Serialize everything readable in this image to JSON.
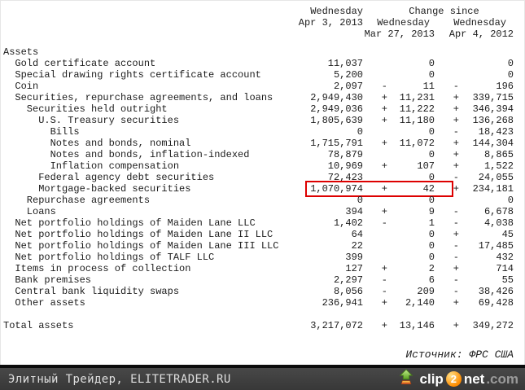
{
  "header": {
    "col1_line1": "Wednesday",
    "change_since": "Change since",
    "col1_line2": "Apr 3, 2013",
    "col2_line2": "Wednesday",
    "col3_line2": "Wednesday",
    "col2_line3": "Mar 27, 2013",
    "col3_line3": "Apr 4, 2012"
  },
  "table": {
    "rows": [
      {
        "label": "Assets",
        "indent": 0,
        "v1": "",
        "s2": "",
        "v2": "",
        "s3": "",
        "v3": ""
      },
      {
        "label": "Gold certificate account",
        "indent": 2,
        "v1": "11,037",
        "s2": "",
        "v2": "0",
        "s3": "",
        "v3": "0"
      },
      {
        "label": "Special drawing rights certificate account",
        "indent": 2,
        "v1": "5,200",
        "s2": "",
        "v2": "0",
        "s3": "",
        "v3": "0"
      },
      {
        "label": "Coin",
        "indent": 2,
        "v1": "2,097",
        "s2": "-",
        "v2": "11",
        "s3": "-",
        "v3": "196"
      },
      {
        "label": "Securities, repurchase agreements, and loans",
        "indent": 2,
        "v1": "2,949,430",
        "s2": "+",
        "v2": "11,231",
        "s3": "+",
        "v3": "339,715"
      },
      {
        "label": "Securities held outright",
        "indent": 4,
        "v1": "2,949,036",
        "s2": "+",
        "v2": "11,222",
        "s3": "+",
        "v3": "346,394"
      },
      {
        "label": "U.S. Treasury securities",
        "indent": 6,
        "v1": "1,805,639",
        "s2": "+",
        "v2": "11,180",
        "s3": "+",
        "v3": "136,268"
      },
      {
        "label": "Bills",
        "indent": 8,
        "v1": "0",
        "s2": "",
        "v2": "0",
        "s3": "-",
        "v3": "18,423"
      },
      {
        "label": "Notes and bonds, nominal",
        "indent": 8,
        "v1": "1,715,791",
        "s2": "+",
        "v2": "11,072",
        "s3": "+",
        "v3": "144,304"
      },
      {
        "label": "Notes and bonds, inflation-indexed",
        "indent": 8,
        "v1": "78,879",
        "s2": "",
        "v2": "0",
        "s3": "+",
        "v3": "8,865"
      },
      {
        "label": "Inflation compensation",
        "indent": 8,
        "v1": "10,969",
        "s2": "+",
        "v2": "107",
        "s3": "+",
        "v3": "1,522"
      },
      {
        "label": "Federal agency debt securities",
        "indent": 6,
        "v1": "72,423",
        "s2": "",
        "v2": "0",
        "s3": "-",
        "v3": "24,055"
      },
      {
        "label": "Mortgage-backed securities",
        "indent": 6,
        "v1": "1,070,974",
        "s2": "+",
        "v2": "42",
        "s3": "+",
        "v3": "234,181",
        "highlight": true
      },
      {
        "label": "Repurchase agreements",
        "indent": 4,
        "v1": "0",
        "s2": "",
        "v2": "0",
        "s3": "",
        "v3": "0"
      },
      {
        "label": "Loans",
        "indent": 4,
        "v1": "394",
        "s2": "+",
        "v2": "9",
        "s3": "-",
        "v3": "6,678"
      },
      {
        "label": "Net portfolio holdings of Maiden Lane LLC",
        "indent": 2,
        "v1": "1,402",
        "s2": "-",
        "v2": "1",
        "s3": "-",
        "v3": "4,038"
      },
      {
        "label": "Net portfolio holdings of Maiden Lane II LLC",
        "indent": 2,
        "v1": "64",
        "s2": "",
        "v2": "0",
        "s3": "+",
        "v3": "45"
      },
      {
        "label": "Net portfolio holdings of Maiden Lane III LLC",
        "indent": 2,
        "v1": "22",
        "s2": "",
        "v2": "0",
        "s3": "-",
        "v3": "17,485"
      },
      {
        "label": "Net portfolio holdings of TALF LLC",
        "indent": 2,
        "v1": "399",
        "s2": "",
        "v2": "0",
        "s3": "-",
        "v3": "432"
      },
      {
        "label": "Items in process of collection",
        "indent": 2,
        "v1": "127",
        "s2": "+",
        "v2": "2",
        "s3": "+",
        "v3": "714"
      },
      {
        "label": "Bank premises",
        "indent": 2,
        "v1": "2,297",
        "s2": "-",
        "v2": "6",
        "s3": "-",
        "v3": "55"
      },
      {
        "label": "Central bank liquidity swaps",
        "indent": 2,
        "v1": "8,056",
        "s2": "-",
        "v2": "209",
        "s3": "-",
        "v3": "38,426"
      },
      {
        "label": "Other assets",
        "indent": 2,
        "v1": "236,941",
        "s2": "+",
        "v2": "2,140",
        "s3": "+",
        "v3": "69,428"
      },
      {
        "spacer": true
      },
      {
        "label": "Total assets",
        "indent": 0,
        "v1": "3,217,072",
        "s2": "+",
        "v2": "13,146",
        "s3": "+",
        "v3": "349,272"
      }
    ]
  },
  "source": "Источник: ФРС США",
  "footer": {
    "site": "Элитный Трейдер, ELITETRADER.RU",
    "logo": {
      "clip": "clip",
      "two": "2",
      "net": "net",
      "com": ".com"
    }
  },
  "colors": {
    "highlight_red": "#dd0000",
    "text": "#1c1c1c",
    "footer_bg": "#3d3d3d",
    "footer_strip": "#0c0c0c",
    "footer_text": "#dfdfdf",
    "logo_orange": "#ff8d00",
    "logo_green": "#6fbf2a",
    "logo_com_gray": "#9a9a9a"
  }
}
